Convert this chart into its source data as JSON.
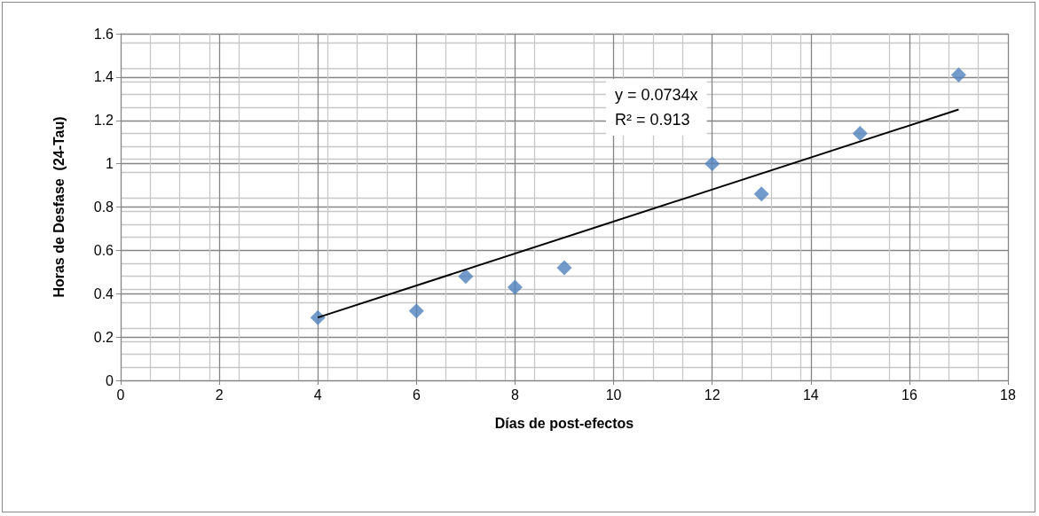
{
  "chart_data": {
    "type": "scatter",
    "xlabel": "Días de post-efectos",
    "ylabel": "Horas de Desfase  (24-Tau)",
    "annotations": [
      "y = 0.0734x",
      "R² = 0.913"
    ],
    "marker": "diamond",
    "grid": true,
    "xlim": [
      0,
      18
    ],
    "xticks": [
      0,
      2,
      4,
      6,
      8,
      10,
      12,
      14,
      16,
      18
    ],
    "ylim": [
      0,
      1.6
    ],
    "yticks": [
      0,
      0.2,
      0.4,
      0.6,
      0.8,
      1,
      1.2,
      1.4,
      1.6
    ],
    "series": [
      {
        "color": "#4f81bd",
        "x": [
          4,
          6,
          7,
          8,
          9,
          12,
          13,
          15,
          17
        ],
        "values": [
          0.29,
          0.32,
          0.48,
          0.43,
          0.52,
          1.0,
          0.86,
          1.14,
          1.41
        ]
      },
      {
        "type": "line",
        "color": "#000000",
        "marker": "none",
        "line_style": "solid",
        "x": [
          4,
          17
        ],
        "values": [
          0.29,
          1.25
        ]
      }
    ]
  }
}
